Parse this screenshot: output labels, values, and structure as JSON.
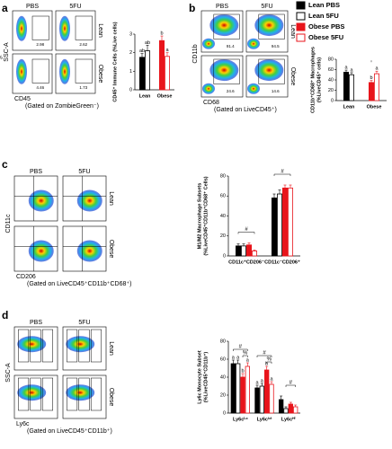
{
  "legend": [
    {
      "name": "Lean PBS",
      "color": "#000000",
      "filled": true
    },
    {
      "name": "Lean 5FU",
      "color": "#000000",
      "filled": false
    },
    {
      "name": "Obese PBS",
      "color": "#e8141b",
      "filled": true
    },
    {
      "name": "Obese 5FU",
      "color": "#e8141b",
      "filled": false
    }
  ],
  "panels": [
    {
      "letter": "a",
      "columns": [
        "PBS",
        "5FU"
      ],
      "rows": [
        "Lean",
        "Obese"
      ],
      "y_axis": "SSC-A",
      "x_axis": "CD45",
      "gating": "(Gated on ZombieGreen⁻)",
      "gates": [
        "2.98",
        "2.62",
        "4.46",
        "1.73"
      ]
    },
    {
      "letter": "b",
      "columns": [
        "PBS",
        "5FU"
      ],
      "rows": [
        "Lean",
        "Obese"
      ],
      "y_axis": "CD11b",
      "x_axis": "CD68",
      "gating": "(Gated on LiveCD45⁺)",
      "gates": [
        "91.4",
        "94.5",
        "24.6",
        "14.6"
      ]
    },
    {
      "letter": "c",
      "columns": [
        "PBS",
        "5FU"
      ],
      "rows": [
        "Lean",
        "Obese"
      ],
      "y_axis": "CD11c",
      "x_axis": "CD206",
      "gating": "(Gated on LiveCD45⁺CD11b⁺CD68⁺)"
    },
    {
      "letter": "d",
      "columns": [
        "PBS",
        "5FU"
      ],
      "rows": [
        "Lean",
        "Obese"
      ],
      "y_axis": "SSC-A",
      "x_axis": "Ly6c",
      "gating": "(Gated on LiveCD45⁺CD11b⁺)"
    }
  ],
  "chart_data": [
    {
      "type": "bar",
      "ylabel": [
        "CD45⁺ Immune Cells (%Live cells)"
      ],
      "categories": [
        "Lean",
        "Obese"
      ],
      "ylim": [
        0,
        3
      ],
      "yticks": [
        0,
        1,
        2,
        3
      ],
      "series": [
        {
          "values": [
            1.75,
            null
          ],
          "errors": [
            0.2,
            null
          ],
          "letters": [
            "ab",
            null
          ]
        },
        {
          "values": [
            2.1,
            null
          ],
          "errors": [
            0.3,
            null
          ],
          "letters": [
            "ab",
            null
          ]
        },
        {
          "values": [
            null,
            2.65
          ],
          "errors": [
            null,
            0.25
          ],
          "letters": [
            null,
            "b"
          ]
        },
        {
          "values": [
            null,
            1.8
          ],
          "errors": [
            null,
            0.2
          ],
          "letters": [
            null,
            "a"
          ]
        }
      ],
      "annotations": []
    },
    {
      "type": "bar",
      "ylabel": [
        "CD11b⁺CD68⁺ Macrophages",
        "(%LiveCD45⁺ cells)"
      ],
      "categories": [
        "Lean",
        "Obese"
      ],
      "ylim": [
        0,
        80
      ],
      "yticks": [
        0,
        20,
        40,
        60,
        80
      ],
      "series": [
        {
          "values": [
            55,
            null
          ],
          "errors": [
            4,
            null
          ],
          "letters": [
            "a",
            null
          ]
        },
        {
          "values": [
            50,
            null
          ],
          "errors": [
            4,
            null
          ],
          "letters": [
            "a",
            null
          ]
        },
        {
          "values": [
            null,
            35
          ],
          "errors": [
            null,
            4
          ],
          "letters": [
            null,
            "b"
          ]
        },
        {
          "values": [
            null,
            52
          ],
          "errors": [
            null,
            5
          ],
          "letters": [
            null,
            "a"
          ]
        }
      ],
      "annotations": [
        "%"
      ]
    },
    {
      "type": "bar",
      "ylabel": [
        "M1/M2 Macrophage Subsets",
        "(%LiveCD45⁺CD11b⁺CD68⁺ Cells)"
      ],
      "categories": [
        "CD11c⁺CD206⁻",
        "CD11c⁻CD206⁺"
      ],
      "ylim": [
        0,
        80
      ],
      "yticks": [
        0,
        20,
        40,
        60,
        80
      ],
      "series": [
        {
          "values": [
            10,
            58
          ],
          "errors": [
            2,
            4
          ],
          "letters": [
            null,
            null
          ]
        },
        {
          "values": [
            10,
            62
          ],
          "errors": [
            2,
            4
          ],
          "letters": [
            null,
            null
          ]
        },
        {
          "values": [
            11,
            68
          ],
          "errors": [
            2,
            3
          ],
          "letters": [
            null,
            null
          ]
        },
        {
          "values": [
            5,
            68
          ],
          "errors": [
            1,
            3
          ],
          "letters": [
            null,
            null
          ]
        }
      ],
      "annotations": [
        "#",
        "#"
      ]
    },
    {
      "type": "bar",
      "ylabel": [
        "Ly6c Monocyte Subset",
        "(%LiveCD45⁺CD11b⁺)"
      ],
      "categories": [
        "Ly6cᴸᵒ",
        "Ly6cᴵⁿᵗ",
        "Ly6cᴴⁱ"
      ],
      "ylim": [
        0,
        80
      ],
      "yticks": [
        0,
        20,
        40,
        60,
        80
      ],
      "series": [
        {
          "values": [
            55,
            28,
            15
          ],
          "errors": [
            4,
            3,
            4
          ],
          "letters": [
            "a",
            "a",
            null
          ]
        },
        {
          "values": [
            55,
            30,
            5
          ],
          "errors": [
            4,
            3,
            2
          ],
          "letters": [
            "a",
            "a",
            null
          ]
        },
        {
          "values": [
            40,
            48,
            10
          ],
          "errors": [
            4,
            4,
            2
          ],
          "letters": [
            "b",
            "b",
            null
          ]
        },
        {
          "values": [
            52,
            32,
            7
          ],
          "errors": [
            4,
            3,
            2
          ],
          "letters": [
            "a",
            "a",
            null
          ]
        }
      ],
      "annotations": [
        "#",
        "%",
        "#",
        "%",
        "#"
      ]
    }
  ]
}
